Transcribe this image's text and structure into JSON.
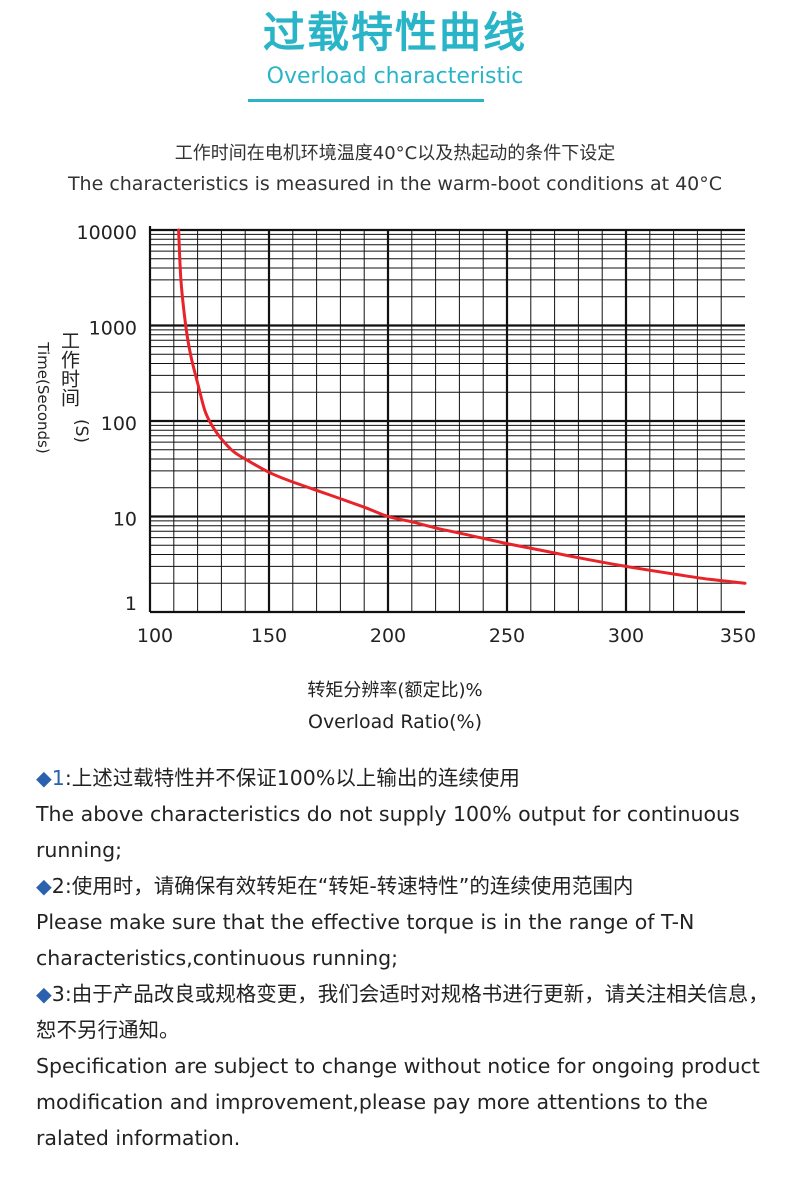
{
  "header": {
    "title_zh": "过载特性曲线",
    "title_en": "Overload characteristic"
  },
  "condition": {
    "zh": "工作时间在电机环境温度40°C以及热起动的条件下设定",
    "en": "The characteristics is measured in the warm-boot conditions at 40°C"
  },
  "chart_data": {
    "type": "line",
    "title": "",
    "xlabel_zh": "转矩分辨率(额定比)%",
    "xlabel_en": "Overload Ratio(%)",
    "ylabel_zh": "工作时间",
    "ylabel_unit": "(S)",
    "ylabel_en": "Time(Seconds)",
    "xlim": [
      100,
      350
    ],
    "ylim": [
      1,
      10000
    ],
    "y_scale": "log",
    "grid": true,
    "x_ticks": [
      "100",
      "150",
      "200",
      "250",
      "300",
      "350"
    ],
    "y_ticks": [
      "1",
      "10",
      "100",
      "1000",
      "10000"
    ],
    "line_color": "#e8242a",
    "series": [
      {
        "x": [
          112,
          113,
          115,
          117,
          120,
          123,
          126,
          130,
          135,
          140,
          150,
          160,
          175,
          190,
          200,
          210,
          220,
          235,
          250,
          265,
          280,
          300,
          320,
          335,
          350
        ],
        "values": [
          10000,
          3000,
          1000,
          500,
          250,
          130,
          90,
          65,
          48,
          40,
          29,
          23,
          17,
          12.5,
          10,
          8.8,
          7.6,
          6.3,
          5.2,
          4.4,
          3.7,
          3.0,
          2.5,
          2.2,
          2.0
        ]
      }
    ]
  },
  "notes": {
    "bullet": "◆",
    "n1_num": "1",
    "n1_zh": ":上述过载特性并不保证100%以上输出的连续使用",
    "n1_en": "The above characteristics do not supply 100% output for continuous running;",
    "n2_num": "2",
    "n2_zh": ":使用时，请确保有效转矩在“转矩-转速特性”的连续使用范围内",
    "n2_en": "Please make sure that the effective torque is in the range of T-N characteristics,continuous running;",
    "n3_num": "3",
    "n3_zh": ":由于产品改良或规格变更，我们会适时对规格书进行更新，请关注相关信息，恕不另行通知。",
    "n3_en_a": "Specification are subject to change without notice for ongoing product",
    "n3_en_b": "modification and improvement,please pay more attentions to the ralated information."
  }
}
